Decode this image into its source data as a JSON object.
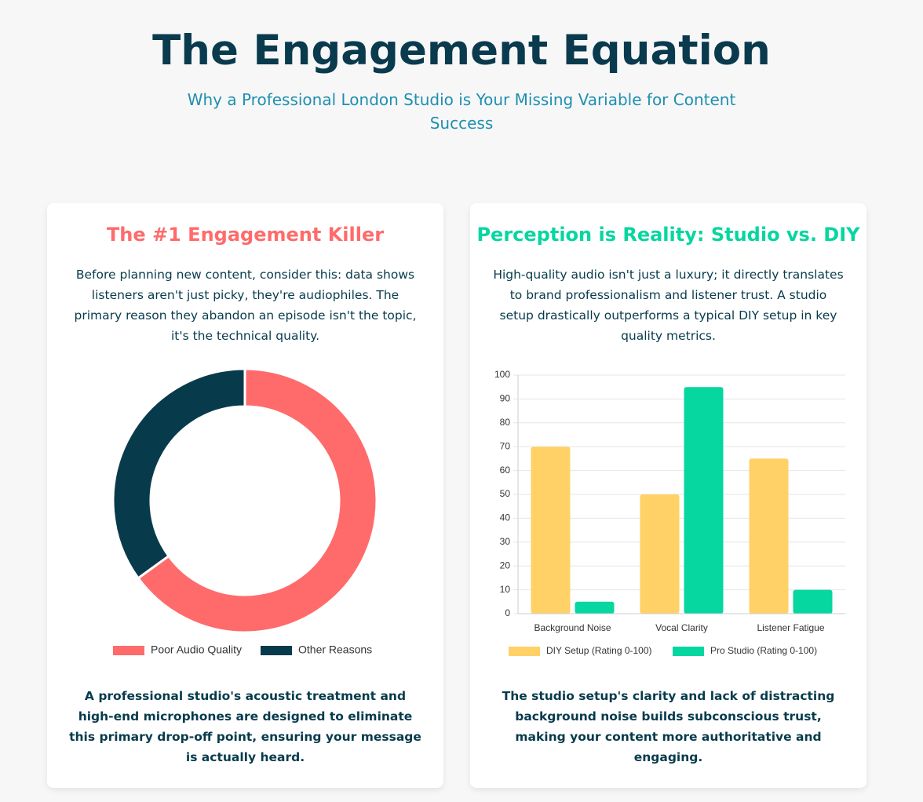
{
  "header": {
    "title": "The Engagement Equation",
    "subtitle": "Why a Professional London Studio is Your Missing Variable for Content Success"
  },
  "cards": [
    {
      "title": "The #1 Engagement Killer",
      "text": "Before planning new content, consider this: data shows listeners aren't just picky, they're audiophiles. The primary reason they abandon an episode isn't the topic, it's the technical quality.",
      "chart_data": {
        "type": "doughnut",
        "categories": [
          "Poor Audio Quality",
          "Other Reasons"
        ],
        "values": [
          65,
          35
        ],
        "colors": [
          "#ff6b6b",
          "#073b4c"
        ],
        "legend": "bottom"
      },
      "footer": "A professional studio's acoustic treatment and high-end microphones are designed to eliminate this primary drop-off point, ensuring your message is actually heard."
    },
    {
      "title": "Perception is Reality: Studio vs. DIY",
      "text": "High-quality audio isn't just a luxury; it directly translates to brand professionalism and listener trust. A studio setup drastically outperforms a typical DIY setup in key quality metrics.",
      "chart_data": {
        "type": "bar",
        "categories": [
          "Background Noise",
          "Vocal Clarity",
          "Listener Fatigue"
        ],
        "series": [
          {
            "name": "DIY Setup (Rating 0-100)",
            "color": "#ffd166",
            "values": [
              70,
              50,
              65
            ]
          },
          {
            "name": "Pro Studio (Rating 0-100)",
            "color": "#06d6a0",
            "values": [
              5,
              95,
              10
            ]
          }
        ],
        "ylim": [
          0,
          100
        ],
        "yticks": [
          0,
          10,
          20,
          30,
          40,
          50,
          60,
          70,
          80,
          90,
          100
        ],
        "grid": true,
        "legend": "bottom"
      },
      "footer": "The studio setup's clarity and lack of distracting background noise builds subconscious trust, making your content more authoritative and engaging."
    }
  ]
}
